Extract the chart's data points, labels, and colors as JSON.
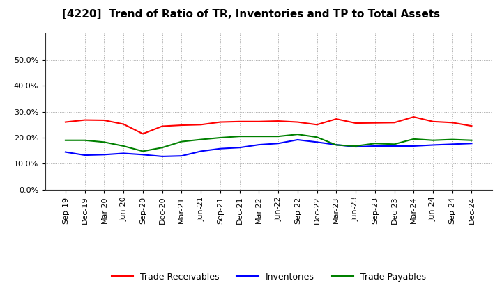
{
  "title": "[4220]  Trend of Ratio of TR, Inventories and TP to Total Assets",
  "x_labels": [
    "Sep-19",
    "Dec-19",
    "Mar-20",
    "Jun-20",
    "Sep-20",
    "Dec-20",
    "Mar-21",
    "Jun-21",
    "Sep-21",
    "Dec-21",
    "Mar-22",
    "Jun-22",
    "Sep-22",
    "Dec-22",
    "Mar-23",
    "Jun-23",
    "Sep-23",
    "Dec-23",
    "Mar-24",
    "Jun-24",
    "Sep-24",
    "Dec-24"
  ],
  "trade_receivables": [
    0.26,
    0.268,
    0.267,
    0.252,
    0.215,
    0.244,
    0.248,
    0.25,
    0.26,
    0.262,
    0.262,
    0.264,
    0.26,
    0.25,
    0.272,
    0.256,
    0.257,
    0.258,
    0.28,
    0.262,
    0.258,
    0.245
  ],
  "inventories": [
    0.145,
    0.133,
    0.135,
    0.14,
    0.135,
    0.128,
    0.13,
    0.148,
    0.158,
    0.162,
    0.173,
    0.178,
    0.192,
    0.183,
    0.173,
    0.165,
    0.168,
    0.168,
    0.168,
    0.172,
    0.175,
    0.178
  ],
  "trade_payables": [
    0.19,
    0.19,
    0.183,
    0.168,
    0.148,
    0.162,
    0.185,
    0.193,
    0.2,
    0.205,
    0.205,
    0.205,
    0.213,
    0.202,
    0.172,
    0.168,
    0.178,
    0.175,
    0.195,
    0.19,
    0.193,
    0.19
  ],
  "line_colors": {
    "trade_receivables": "#ff0000",
    "inventories": "#0000ff",
    "trade_payables": "#008000"
  },
  "legend_labels": [
    "Trade Receivables",
    "Inventories",
    "Trade Payables"
  ],
  "ylim": [
    0.0,
    0.6
  ],
  "yticks": [
    0.0,
    0.1,
    0.2,
    0.3,
    0.4,
    0.5
  ],
  "background_color": "#ffffff",
  "grid_color": "#aaaaaa",
  "title_fontsize": 11,
  "tick_fontsize": 8,
  "legend_fontsize": 9,
  "linewidth": 1.5
}
